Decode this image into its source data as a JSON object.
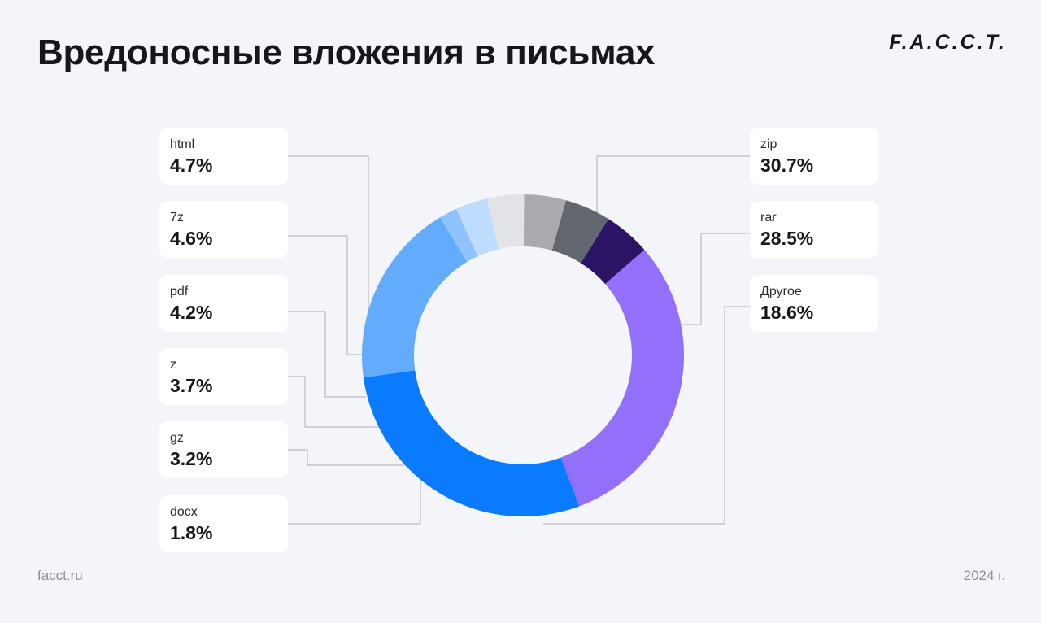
{
  "header": {
    "title": "Вредоносные вложения в письмах",
    "logo": "F.A.C.C.T."
  },
  "footer": {
    "site": "facct.ru",
    "year": "2024 г."
  },
  "chart_data": {
    "type": "pie",
    "donut": true,
    "legend": "callout labels around the ring",
    "series": [
      {
        "name": "zip",
        "value": 30.7,
        "label": "30.7%",
        "color": "#9370fb"
      },
      {
        "name": "rar",
        "value": 28.5,
        "label": "28.5%",
        "color": "#0a7bff"
      },
      {
        "name": "Другое",
        "value": 18.6,
        "label": "18.6%",
        "color": "#63acfd"
      },
      {
        "name": "docx",
        "value": 1.8,
        "label": "1.8%",
        "color": "#8fc3fd"
      },
      {
        "name": "gz",
        "value": 3.2,
        "label": "3.2%",
        "color": "#bedcfd"
      },
      {
        "name": "z",
        "value": 3.7,
        "label": "3.7%",
        "color": "#e2e3e6"
      },
      {
        "name": "pdf",
        "value": 4.2,
        "label": "4.2%",
        "color": "#a8aaae"
      },
      {
        "name": "7z",
        "value": 4.6,
        "label": "4.6%",
        "color": "#62666e"
      },
      {
        "name": "html",
        "value": 4.7,
        "label": "4.7%",
        "color": "#2b1366"
      }
    ]
  }
}
